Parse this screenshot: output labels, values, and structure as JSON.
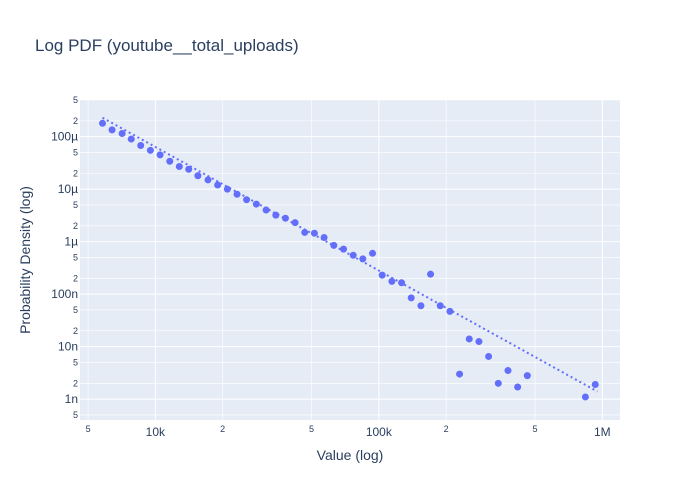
{
  "chart_data": {
    "type": "scatter",
    "title": "Log PDF (youtube__total_uploads)",
    "xlabel": "Value (log)",
    "ylabel": "Probability Density (log)",
    "xscale": "log",
    "yscale": "log",
    "xlim": [
      4600,
      1200000
    ],
    "ylim": [
      4e-10,
      0.0005
    ],
    "x_ticks": [
      {
        "value": 10000,
        "label": "10k"
      },
      {
        "value": 100000,
        "label": "100k"
      },
      {
        "value": 1000000,
        "label": "1M"
      }
    ],
    "x_minor_ticks": [
      {
        "value": 5000,
        "label": "5"
      },
      {
        "value": 20000,
        "label": "2"
      },
      {
        "value": 50000,
        "label": "5"
      },
      {
        "value": 200000,
        "label": "2"
      },
      {
        "value": 500000,
        "label": "5"
      }
    ],
    "y_ticks": [
      {
        "value": 1e-09,
        "label": "1n"
      },
      {
        "value": 1e-08,
        "label": "10n"
      },
      {
        "value": 1e-07,
        "label": "100n"
      },
      {
        "value": 1e-06,
        "label": "1µ"
      },
      {
        "value": 1e-05,
        "label": "10µ"
      },
      {
        "value": 0.0001,
        "label": "100µ"
      }
    ],
    "y_minor_ticks": [
      {
        "value": 5e-10,
        "label": "5"
      },
      {
        "value": 2e-09,
        "label": "2"
      },
      {
        "value": 5e-09,
        "label": "5"
      },
      {
        "value": 2e-08,
        "label": "2"
      },
      {
        "value": 5e-08,
        "label": "5"
      },
      {
        "value": 2e-07,
        "label": "2"
      },
      {
        "value": 5e-07,
        "label": "5"
      },
      {
        "value": 2e-06,
        "label": "2"
      },
      {
        "value": 5e-06,
        "label": "5"
      },
      {
        "value": 2e-05,
        "label": "2"
      },
      {
        "value": 5e-05,
        "label": "5"
      },
      {
        "value": 0.0002,
        "label": "2"
      },
      {
        "value": 0.0005,
        "label": "5"
      }
    ],
    "grid": true,
    "colors": {
      "marker": "#636efa",
      "plot_bg": "#e5ecf6",
      "grid": "#ffffff",
      "text": "#2a3f5f"
    },
    "series": [
      {
        "mode": "markers",
        "points": [
          [
            5800,
            0.00018
          ],
          [
            6400,
            0.000135
          ],
          [
            7100,
            0.000115
          ],
          [
            7800,
            9e-05
          ],
          [
            8600,
            6.8e-05
          ],
          [
            9500,
            5.5e-05
          ],
          [
            10500,
            4.5e-05
          ],
          [
            11600,
            3.4e-05
          ],
          [
            12800,
            2.7e-05
          ],
          [
            14100,
            2.4e-05
          ],
          [
            15500,
            1.8e-05
          ],
          [
            17200,
            1.5e-05
          ],
          [
            19000,
            1.2e-05
          ],
          [
            21000,
            1e-05
          ],
          [
            23200,
            8e-06
          ],
          [
            25600,
            6.3e-06
          ],
          [
            28300,
            5.2e-06
          ],
          [
            31300,
            4e-06
          ],
          [
            34600,
            3.2e-06
          ],
          [
            38200,
            2.8e-06
          ],
          [
            42200,
            2.3e-06
          ],
          [
            46600,
            1.5e-06
          ],
          [
            51500,
            1.45e-06
          ],
          [
            56900,
            1.2e-06
          ],
          [
            62900,
            8.5e-07
          ],
          [
            69500,
            7.2e-07
          ],
          [
            76800,
            5.5e-07
          ],
          [
            84800,
            4.7e-07
          ],
          [
            93700,
            6e-07
          ],
          [
            103500,
            2.3e-07
          ],
          [
            114400,
            1.75e-07
          ],
          [
            126400,
            1.65e-07
          ],
          [
            139600,
            8.5e-08
          ],
          [
            154300,
            6e-08
          ],
          [
            170400,
            2.4e-07
          ],
          [
            188300,
            6e-08
          ],
          [
            208000,
            4.7e-08
          ],
          [
            229800,
            3e-09
          ],
          [
            253900,
            1.4e-08
          ],
          [
            280500,
            1.25e-08
          ],
          [
            309900,
            6.5e-09
          ],
          [
            342400,
            2e-09
          ],
          [
            378300,
            3.5e-09
          ],
          [
            418000,
            1.7e-09
          ],
          [
            461800,
            2.8e-09
          ],
          [
            840000,
            1.1e-09
          ],
          [
            930000,
            1.9e-09
          ]
        ]
      },
      {
        "mode": "lines",
        "dash": "dot",
        "points": [
          [
            5800,
            0.00023
          ],
          [
            950000,
            1.4e-09
          ]
        ]
      }
    ]
  }
}
